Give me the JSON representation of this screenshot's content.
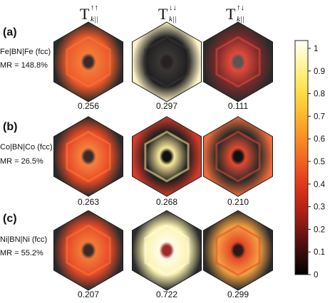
{
  "headers": [
    {
      "base": "T",
      "sup": "↑↑",
      "sub": "k||"
    },
    {
      "base": "T",
      "sup": "↓↓",
      "sub": "k||"
    },
    {
      "base": "T",
      "sup": "↑↓",
      "sub": "k||"
    }
  ],
  "rows": [
    {
      "label": "(a)",
      "system": "Fe|BN|Fe (fcc)",
      "mr": "MR = 148.8%",
      "values": [
        "0.256",
        "0.297",
        "0.111"
      ],
      "maps": [
        {
          "bg": "#ee5a2a",
          "center": "#3a2a2a",
          "mid": "#f27a3a",
          "corners": "#2b2b2b"
        },
        {
          "bg": "#1f1f1f",
          "center": "#2a2020",
          "mid": "#3a3535",
          "corners": "#fff3c8"
        },
        {
          "bg": "#7a2a2a",
          "center": "#5a5555",
          "mid": "#e04a3a",
          "corners": "#2b2b2b"
        }
      ]
    },
    {
      "label": "(b)",
      "system": "Co|BN|Co (fcc)",
      "mr": "MR = 26.5%",
      "values": [
        "0.263",
        "0.268",
        "0.210"
      ],
      "maps": [
        {
          "bg": "#ea4a25",
          "center": "#3a2a2a",
          "mid": "#f48040",
          "corners": "#2b2b2b"
        },
        {
          "bg": "#1f1f1f",
          "center": "#111111",
          "mid": "#f8e79a",
          "corners": "#d63a2a"
        },
        {
          "bg": "#2a2a2a",
          "center": "#111111",
          "mid": "#e04a30",
          "corners": "#ee6a3a"
        }
      ]
    },
    {
      "label": "(c)",
      "system": "Ni|BN|Ni (fcc)",
      "mr": "MR = 55.2%",
      "values": [
        "0.207",
        "0.722",
        "0.299"
      ],
      "maps": [
        {
          "bg": "#e84a28",
          "center": "#3a2a2a",
          "mid": "#f27a3a",
          "corners": "#2b2b2b"
        },
        {
          "bg": "#fbf3b0",
          "center": "#a02a2a",
          "mid": "#fffce8",
          "corners": "#2b2b2b"
        },
        {
          "bg": "#f2a040",
          "center": "#2a1a1a",
          "mid": "#e84a28",
          "corners": "#2b2b2b"
        }
      ]
    }
  ],
  "colorbar": {
    "ticks": [
      "1",
      "0.9",
      "0.8",
      "0.7",
      "0.6",
      "0.5",
      "0.4",
      "0.3",
      "0.2",
      "0.1",
      "0"
    ],
    "stops": [
      "#000000",
      "#2a0a0a",
      "#5a0f0f",
      "#8a1a10",
      "#b82214",
      "#d8301a",
      "#e84a1c",
      "#f26a20",
      "#f88a22",
      "#faa826",
      "#fcc632",
      "#fde048",
      "#fef07a",
      "#fff8b8",
      "#ffffff"
    ]
  }
}
